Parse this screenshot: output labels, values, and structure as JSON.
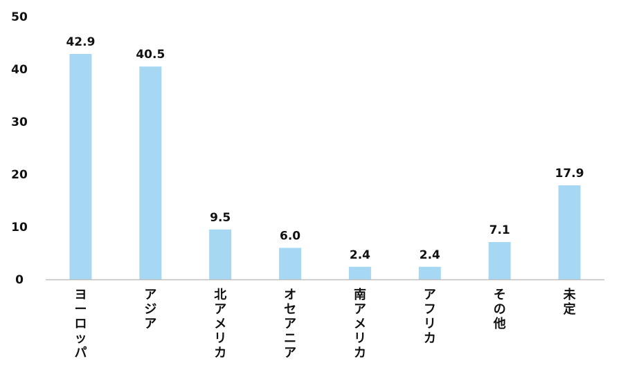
{
  "colors": {
    "bar": "#a6d8f4",
    "axis": "#bfbfbf",
    "text": "#111111"
  },
  "chart_data": {
    "type": "bar",
    "categories": [
      "ヨーロッパ",
      "アジア",
      "北アメリカ",
      "オセアニア",
      "南アメリカ",
      "アフリカ",
      "その他",
      "未定"
    ],
    "values": [
      42.9,
      40.5,
      9.5,
      6.0,
      2.4,
      2.4,
      7.1,
      17.9
    ],
    "data_labels": [
      "42.9",
      "40.5",
      "9.5",
      "6.0",
      "2.4",
      "2.4",
      "7.1",
      "17.9"
    ],
    "yticks": [
      "0",
      "10",
      "20",
      "30",
      "40",
      "50"
    ],
    "ylim": [
      0,
      50
    ],
    "grid": false,
    "legend": "none",
    "title": "",
    "xlabel": "",
    "ylabel": ""
  }
}
